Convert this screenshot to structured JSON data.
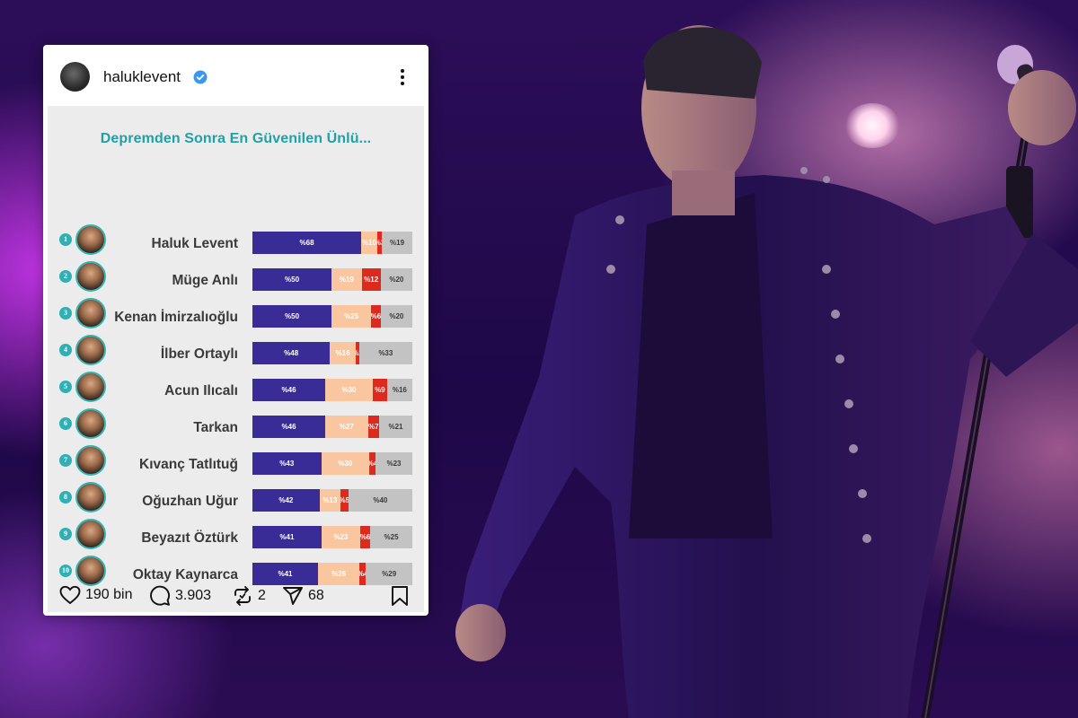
{
  "post": {
    "username": "haluklevent",
    "title": "Depremden Sonra En Güvenilen Ünlü...",
    "icons": [
      "verified-badge-icon",
      "more-options-icon",
      "heart-icon",
      "comment-icon",
      "repost-icon",
      "share-icon",
      "bookmark-icon"
    ],
    "colors": {
      "accent": "#22a0a8",
      "verified": "#3897f0",
      "series": [
        "#3a2c96",
        "#f9c6a0",
        "#dc2a1e",
        "#c3c3c3"
      ]
    }
  },
  "ranking": [
    {
      "rank": "1",
      "name": "Haluk Levent",
      "segments": [
        "%68",
        "%10",
        "%3",
        "%19"
      ],
      "values": [
        68,
        10,
        3,
        19
      ]
    },
    {
      "rank": "2",
      "name": "Müge Anlı",
      "segments": [
        "%50",
        "%19",
        "%12",
        "%20"
      ],
      "values": [
        50,
        19,
        12,
        20
      ]
    },
    {
      "rank": "3",
      "name": "Kenan İmirzalıoğlu",
      "segments": [
        "%50",
        "%25",
        "%6",
        "%20"
      ],
      "values": [
        50,
        25,
        6,
        20
      ]
    },
    {
      "rank": "4",
      "name": "İlber Ortaylı",
      "segments": [
        "%48",
        "%16",
        "%2",
        "%33"
      ],
      "values": [
        48,
        16,
        2,
        33
      ]
    },
    {
      "rank": "5",
      "name": "Acun Ilıcalı",
      "segments": [
        "%46",
        "%30",
        "%9",
        "%16"
      ],
      "values": [
        46,
        30,
        9,
        16
      ]
    },
    {
      "rank": "6",
      "name": "Tarkan",
      "segments": [
        "%46",
        "%27",
        "%7",
        "%21"
      ],
      "values": [
        46,
        27,
        7,
        21
      ]
    },
    {
      "rank": "7",
      "name": "Kıvanç Tatlıtuğ",
      "segments": [
        "%43",
        "%30",
        "%4",
        "%23"
      ],
      "values": [
        43,
        30,
        4,
        23
      ]
    },
    {
      "rank": "8",
      "name": "Oğuzhan Uğur",
      "segments": [
        "%42",
        "%13",
        "%5",
        "%40"
      ],
      "values": [
        42,
        13,
        5,
        40
      ]
    },
    {
      "rank": "9",
      "name": "Beyazıt Öztürk",
      "segments": [
        "%41",
        "%23",
        "%6",
        "%25"
      ],
      "values": [
        41,
        23,
        6,
        25
      ]
    },
    {
      "rank": "10",
      "name": "Oktay Kaynarca",
      "segments": [
        "%41",
        "%26",
        "%4",
        "%29"
      ],
      "values": [
        41,
        26,
        4,
        29
      ]
    }
  ],
  "actions": {
    "likes": "190 bin",
    "comments": "3.903",
    "reposts": "2",
    "shares": "68"
  }
}
